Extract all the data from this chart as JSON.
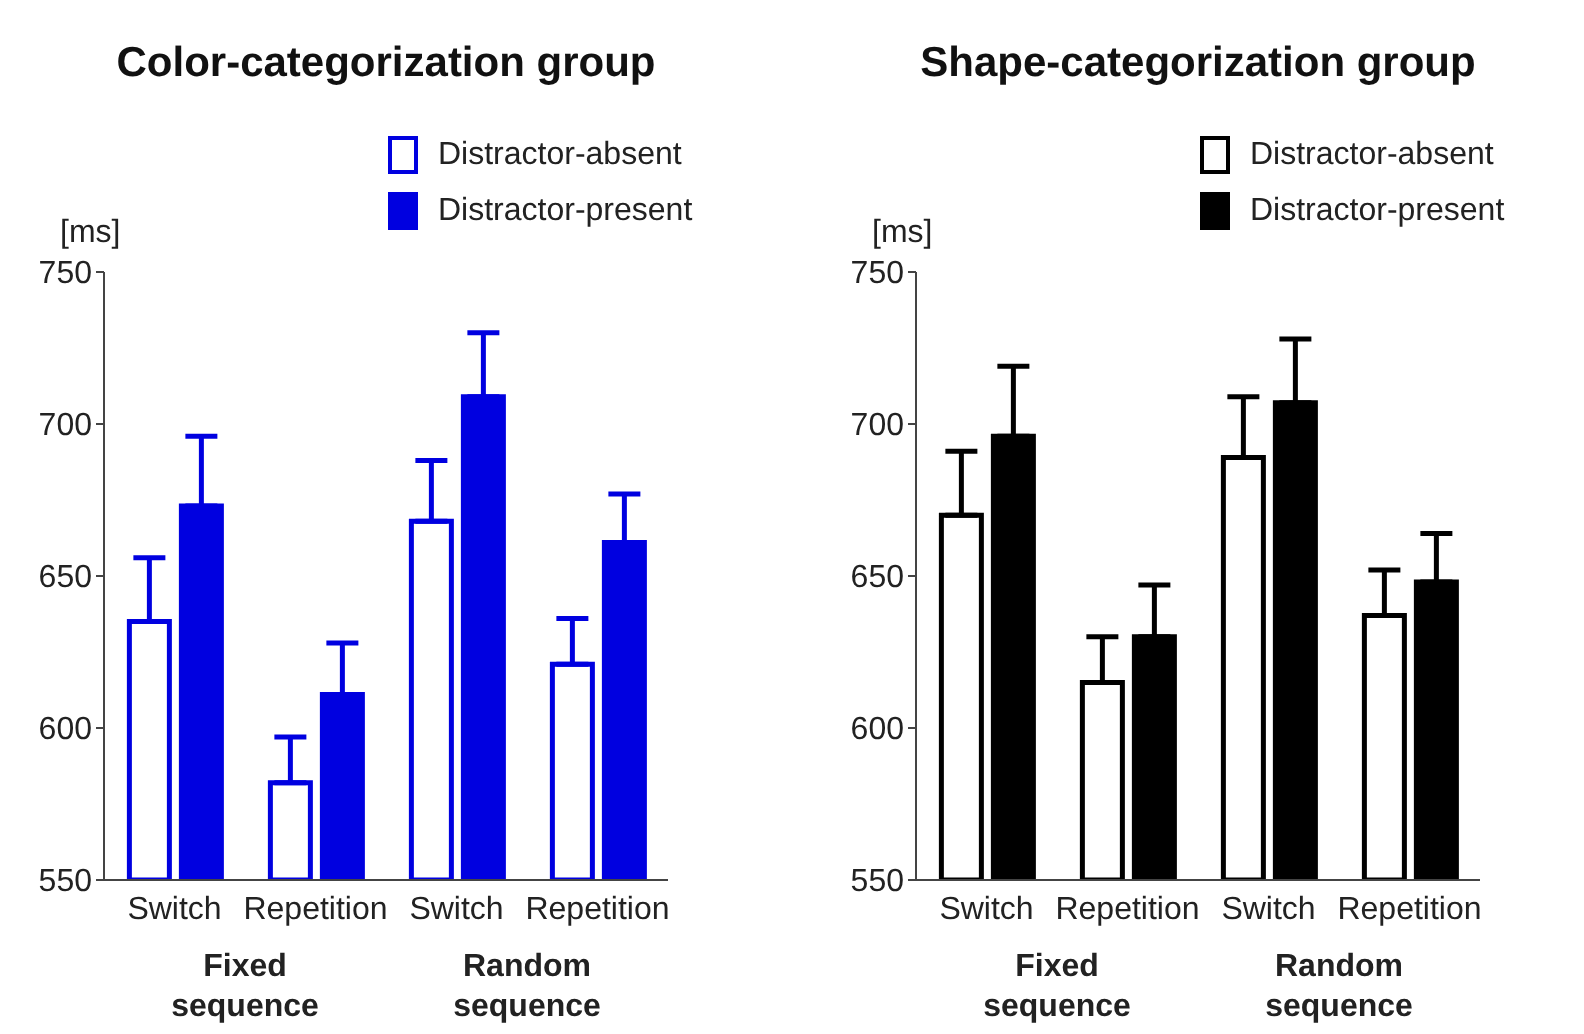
{
  "chart_data": [
    {
      "type": "bar",
      "title": "Color-categorization group",
      "ylabel": "[ms]",
      "categories": [
        "Switch",
        "Repetition",
        "Switch",
        "Repetition"
      ],
      "series": [
        {
          "name": "Distractor-absent",
          "color": "#0000e0",
          "values": [
            635,
            582,
            668,
            621
          ],
          "errors": [
            [
              635,
              656
            ],
            [
              582,
              597
            ],
            [
              668,
              688
            ],
            [
              621,
              636
            ]
          ]
        },
        {
          "name": "Distractor-present",
          "color": "#0000e0",
          "values": [
            673,
            611,
            709,
            661
          ],
          "errors": [
            [
              673,
              696
            ],
            [
              611,
              628
            ],
            [
              709,
              730
            ],
            [
              661,
              677
            ]
          ]
        }
      ],
      "annotations": [
        "Fixed sequence",
        "Random sequence"
      ],
      "ylim": [
        550,
        750
      ],
      "yticks": [
        550,
        600,
        650,
        700,
        750
      ],
      "legend": "top right"
    },
    {
      "type": "bar",
      "title": "Shape-categorization group",
      "ylabel": "[ms]",
      "categories": [
        "Switch",
        "Repetition",
        "Switch",
        "Repetition"
      ],
      "series": [
        {
          "name": "Distractor-absent",
          "color": "#000000",
          "values": [
            670,
            615,
            689,
            637
          ],
          "errors": [
            [
              670,
              691
            ],
            [
              615,
              630
            ],
            [
              689,
              709
            ],
            [
              637,
              652
            ]
          ]
        },
        {
          "name": "Distractor-present",
          "color": "#000000",
          "values": [
            696,
            630,
            707,
            648
          ],
          "errors": [
            [
              696,
              719
            ],
            [
              630,
              647
            ],
            [
              707,
              728
            ],
            [
              648,
              664
            ]
          ]
        }
      ],
      "annotations": [
        "Fixed sequence",
        "Random sequence"
      ],
      "ylim": [
        550,
        750
      ],
      "yticks": [
        550,
        600,
        650,
        700,
        750
      ],
      "legend": "top right"
    }
  ]
}
